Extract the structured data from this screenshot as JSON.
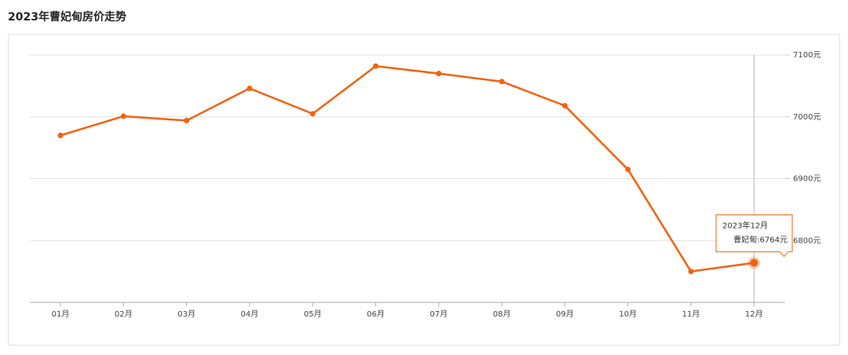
{
  "chart_data": {
    "type": "line",
    "title": "2023年曹妃甸房价走势",
    "categories": [
      "01月",
      "02月",
      "03月",
      "04月",
      "05月",
      "06月",
      "07月",
      "08月",
      "09月",
      "10月",
      "11月",
      "12月"
    ],
    "series": [
      {
        "name": "曹妃甸",
        "color": "#f2620f",
        "values": [
          6970,
          7001,
          6994,
          7046,
          7005,
          7082,
          7070,
          7057,
          7018,
          6915,
          6750,
          6764
        ]
      }
    ],
    "ylim": [
      6700,
      7100
    ],
    "yticks": [
      {
        "value": 6800,
        "label": "6800元"
      },
      {
        "value": 6900,
        "label": "6900元"
      },
      {
        "value": 7000,
        "label": "7000元"
      },
      {
        "value": 7100,
        "label": "7100元"
      }
    ],
    "grid": true,
    "tooltip": {
      "title": "2023年12月",
      "text": "曹妃甸:6764元"
    }
  }
}
